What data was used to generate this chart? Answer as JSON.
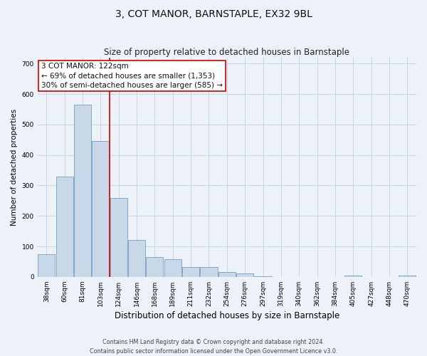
{
  "title": "3, COT MANOR, BARNSTAPLE, EX32 9BL",
  "subtitle": "Size of property relative to detached houses in Barnstaple",
  "xlabel": "Distribution of detached houses by size in Barnstaple",
  "ylabel": "Number of detached properties",
  "footer_line1": "Contains HM Land Registry data © Crown copyright and database right 2024.",
  "footer_line2": "Contains public sector information licensed under the Open Government Licence v3.0.",
  "categories": [
    "38sqm",
    "60sqm",
    "81sqm",
    "103sqm",
    "124sqm",
    "146sqm",
    "168sqm",
    "189sqm",
    "211sqm",
    "232sqm",
    "254sqm",
    "276sqm",
    "297sqm",
    "319sqm",
    "340sqm",
    "362sqm",
    "384sqm",
    "405sqm",
    "427sqm",
    "448sqm",
    "470sqm"
  ],
  "values": [
    75,
    330,
    565,
    445,
    260,
    122,
    65,
    58,
    32,
    32,
    16,
    12,
    2,
    0,
    0,
    0,
    0,
    5,
    0,
    0,
    5
  ],
  "bar_color": "#c8d8e8",
  "bar_edge_color": "#6090b8",
  "bar_edge_width": 0.5,
  "grid_color": "#c8d4e4",
  "bg_color": "#edf2f8",
  "red_line_x": 3.5,
  "red_line_color": "#cc0000",
  "annotation_line1": "3 COT MANOR: 122sqm",
  "annotation_line2": "← 69% of detached houses are smaller (1,353)",
  "annotation_line3": "30% of semi-detached houses are larger (585) →",
  "annotation_box_color": "#ffffff",
  "annotation_box_edge": "#cc0000",
  "ylim": [
    0,
    720
  ],
  "yticks": [
    0,
    100,
    200,
    300,
    400,
    500,
    600,
    700
  ],
  "title_fontsize": 10,
  "subtitle_fontsize": 8.5,
  "ylabel_fontsize": 7.5,
  "xlabel_fontsize": 8.5,
  "tick_fontsize": 6.5,
  "annot_fontsize": 7.5,
  "footer_fontsize": 5.8
}
